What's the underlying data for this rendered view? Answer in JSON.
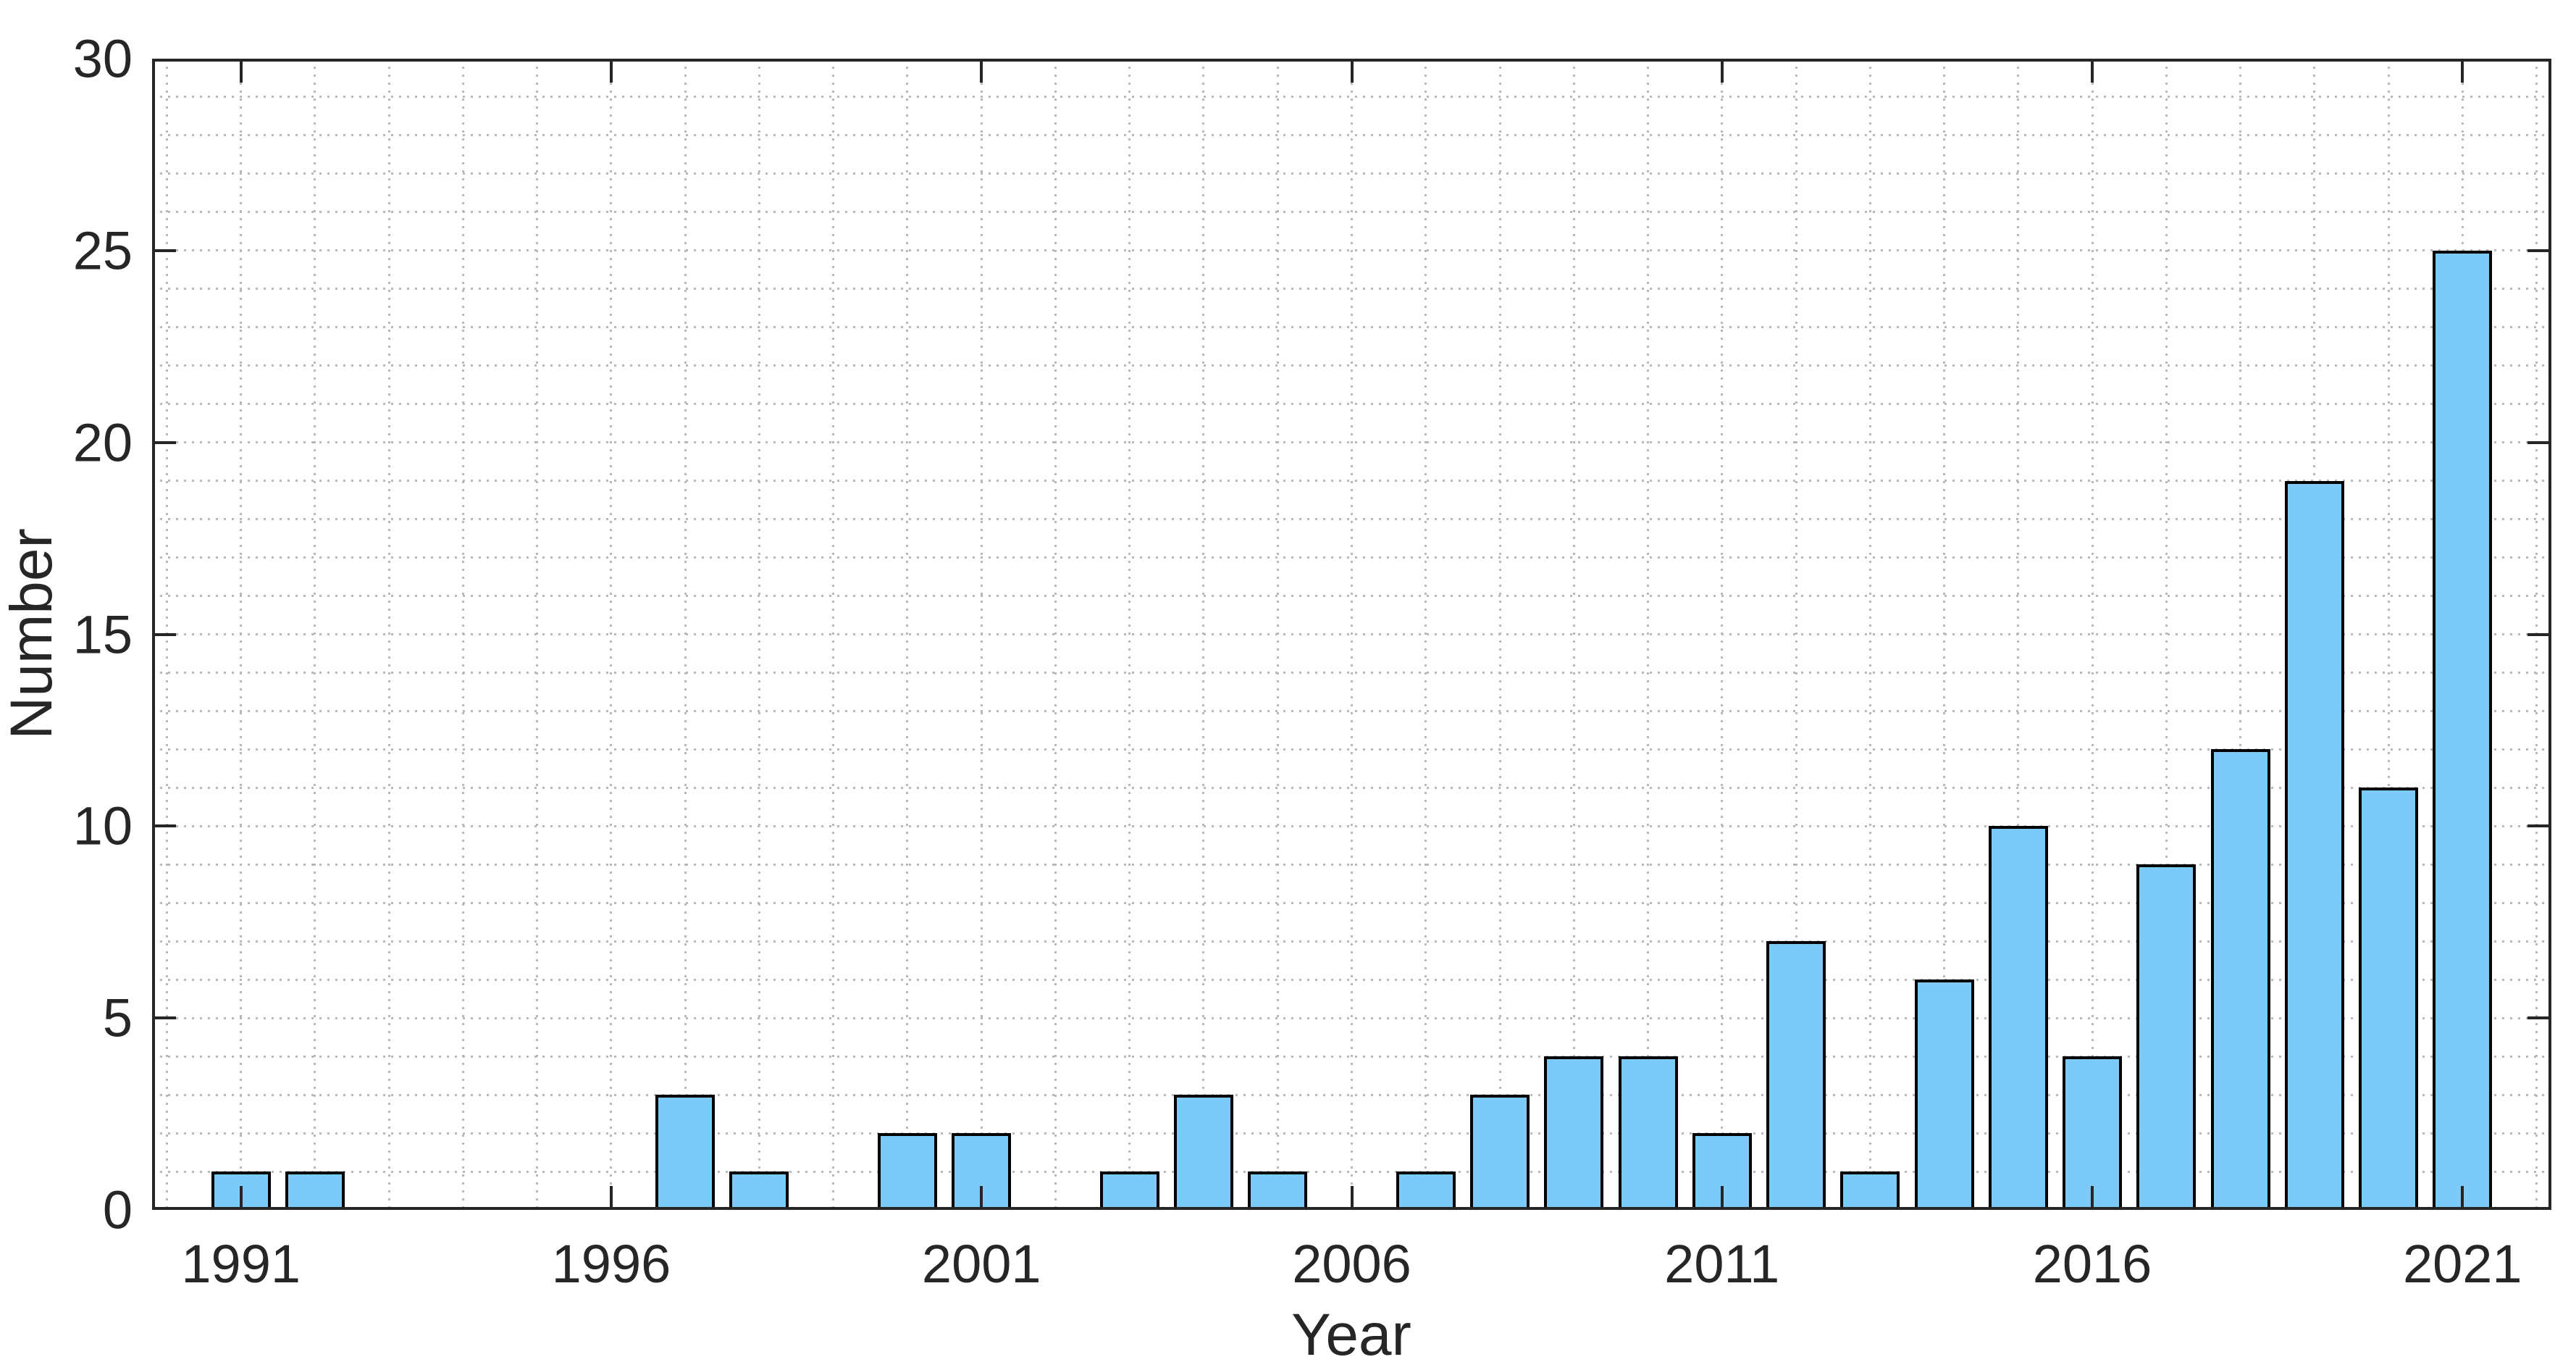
{
  "chart_data": {
    "type": "bar",
    "title": "",
    "xlabel": "Year",
    "ylabel": "Number",
    "categories": [
      1991,
      1992,
      1993,
      1994,
      1995,
      1996,
      1997,
      1998,
      1999,
      2000,
      2001,
      2002,
      2003,
      2004,
      2005,
      2006,
      2007,
      2008,
      2009,
      2010,
      2011,
      2012,
      2013,
      2014,
      2015,
      2016,
      2017,
      2018,
      2019,
      2020,
      2021
    ],
    "values": [
      1,
      1,
      0,
      0,
      0,
      0,
      3,
      1,
      0,
      2,
      2,
      0,
      1,
      3,
      1,
      0,
      1,
      3,
      4,
      4,
      2,
      7,
      1,
      6,
      10,
      4,
      9,
      12,
      19,
      11,
      25
    ],
    "xticks": [
      1991,
      1996,
      2001,
      2006,
      2011,
      2016,
      2021
    ],
    "yticks": [
      0,
      5,
      10,
      15,
      20,
      25,
      30
    ],
    "xlim": [
      1989.8,
      2022.2
    ],
    "ylim": [
      0,
      30
    ],
    "bar_width_fraction": 0.8,
    "grid": "dotted minor grid on both axes, every 1 unit and every 1 year",
    "legend_position": "none",
    "colors": {
      "bar_fill": "#7CCAF7",
      "bar_edge": "#000000",
      "axis": "#262626",
      "grid_dots": "#B9B9B9",
      "background": "#FFFFFF",
      "text": "#262626"
    }
  }
}
